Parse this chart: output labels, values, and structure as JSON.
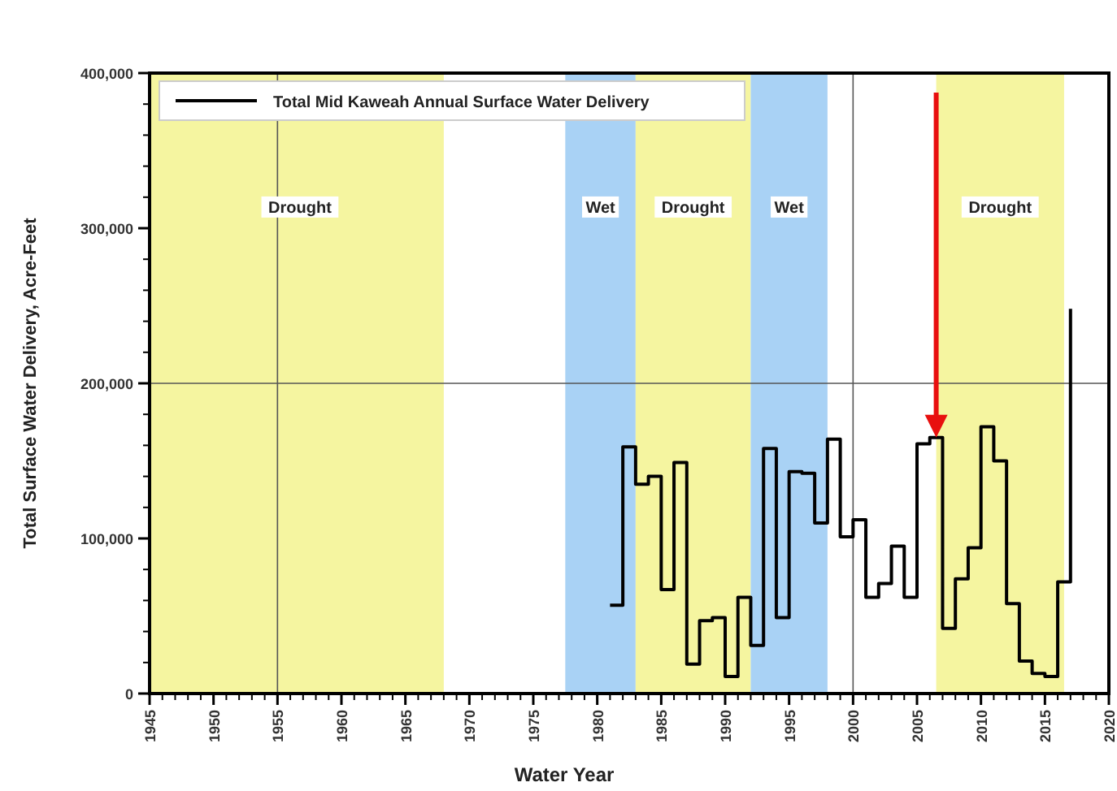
{
  "chart_data": {
    "type": "step",
    "xlabel": "Water Year",
    "ylabel": "Total Surface Water Delivery, Acre-Feet",
    "xlim": [
      1945,
      2020
    ],
    "xticks": [
      1945,
      1950,
      1955,
      1960,
      1965,
      1970,
      1975,
      1980,
      1985,
      1990,
      1995,
      2000,
      2005,
      2010,
      2015,
      2020
    ],
    "ylim": [
      0,
      400000
    ],
    "yticks": [
      {
        "value": 0,
        "label": "0"
      },
      {
        "value": 100000,
        "label": "100,000"
      },
      {
        "value": 200000,
        "label": "200,000"
      },
      {
        "value": 300000,
        "label": "300,000"
      },
      {
        "value": 400000,
        "label": "400,000"
      }
    ],
    "x": [
      1981,
      1982,
      1983,
      1984,
      1985,
      1986,
      1987,
      1988,
      1989,
      1990,
      1991,
      1992,
      1993,
      1994,
      1995,
      1996,
      1997,
      1998,
      1999,
      2000,
      2001,
      2002,
      2003,
      2004,
      2005,
      2006,
      2007,
      2008,
      2009,
      2010,
      2011,
      2012,
      2013,
      2014,
      2015,
      2016,
      2017
    ],
    "series": [
      {
        "name": "Total Mid Kaweah Annual Surface Water Delivery",
        "color": "#000000",
        "values": [
          57000,
          159000,
          135000,
          140000,
          67000,
          149000,
          19000,
          47000,
          49000,
          11000,
          62000,
          31000,
          158000,
          49000,
          143000,
          142000,
          110000,
          164000,
          101000,
          112000,
          62000,
          71000,
          95000,
          62000,
          161000,
          165000,
          42000,
          74000,
          94000,
          172000,
          150000,
          58000,
          21000,
          13000,
          11000,
          72000,
          248000
        ]
      }
    ],
    "bands": [
      {
        "axis": "x",
        "from": 1945,
        "to": 1968,
        "label": "Drought",
        "color": "#f5f5a0"
      },
      {
        "axis": "x",
        "from": 1977.5,
        "to": 1983,
        "label": "Wet",
        "color": "#a9d2f5"
      },
      {
        "axis": "x",
        "from": 1983,
        "to": 1992,
        "label": "Drought",
        "color": "#f5f5a0"
      },
      {
        "axis": "x",
        "from": 1992,
        "to": 1998,
        "label": "Wet",
        "color": "#a9d2f5"
      },
      {
        "axis": "x",
        "from": 2006.5,
        "to": 2016.5,
        "label": "Drought",
        "color": "#f5f5a0"
      }
    ],
    "ref_lines": [
      {
        "axis": "x",
        "value": 1955,
        "color": "#555555"
      },
      {
        "axis": "x",
        "value": 2000,
        "color": "#555555"
      },
      {
        "axis": "y",
        "value": 200000,
        "color": "#555555"
      }
    ],
    "legend": "top left",
    "grid": false
  }
}
